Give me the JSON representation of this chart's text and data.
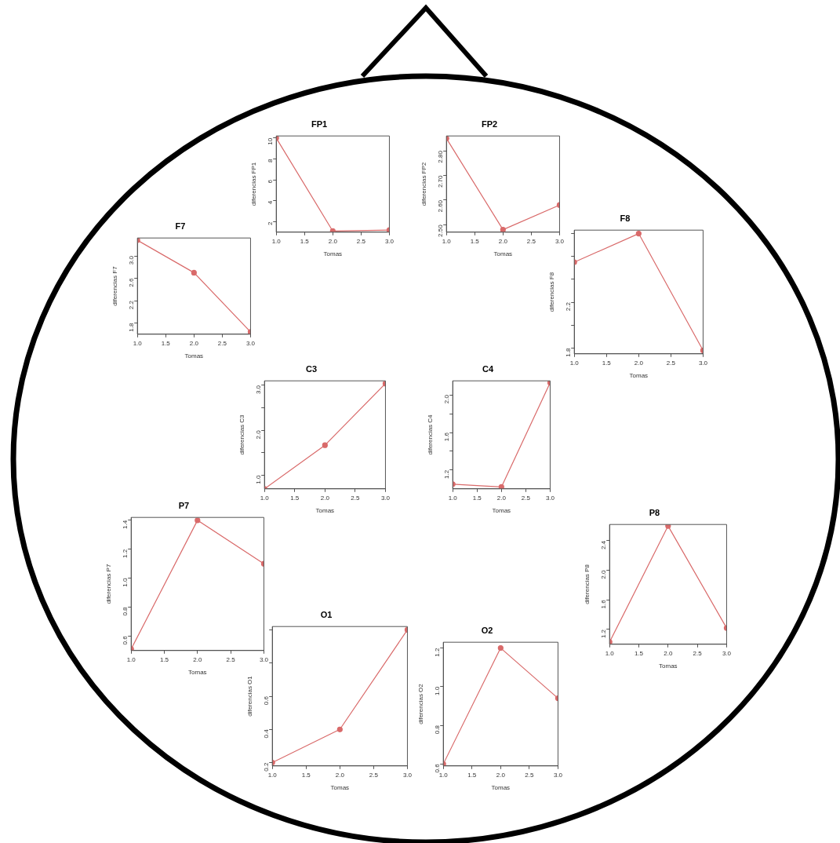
{
  "chart_data": [
    {
      "type": "line",
      "title": "FP1",
      "xlabel": "Tomas",
      "ylabel": "diferencias FP1",
      "x": [
        1,
        2,
        3
      ],
      "values": [
        10,
        1.1,
        1.2
      ],
      "color": "#d96a6a",
      "marker": "circle",
      "xlim": [
        1,
        3
      ],
      "xticks": [
        {
          "value": 1,
          "label": "1.0"
        },
        {
          "value": 1.5,
          "label": "1.5"
        },
        {
          "value": 2,
          "label": "2.0"
        },
        {
          "value": 2.5,
          "label": "2.5"
        },
        {
          "value": 3,
          "label": "3.0"
        }
      ],
      "ylim": [
        1,
        10.2
      ],
      "yticks": [
        2,
        4,
        6,
        8,
        10
      ]
    },
    {
      "type": "line",
      "title": "FP2",
      "xlabel": "Tomas",
      "ylabel": "diferencias FP2",
      "x": [
        1,
        2,
        3
      ],
      "values": [
        2.85,
        2.48,
        2.58
      ],
      "color": "#d96a6a",
      "marker": "circle",
      "xlim": [
        1,
        3
      ],
      "xticks": [
        {
          "value": 1,
          "label": "1.0"
        },
        {
          "value": 1.5,
          "label": "1.5"
        },
        {
          "value": 2,
          "label": "2.0"
        },
        {
          "value": 2.5,
          "label": "2.5"
        },
        {
          "value": 3,
          "label": "3.0"
        }
      ],
      "ylim": [
        2.47,
        2.86
      ],
      "yticks": [
        {
          "value": 2.5,
          "label": "2.50"
        },
        {
          "value": 2.6,
          "label": "2.60"
        },
        {
          "value": 2.7,
          "label": "2.70"
        },
        {
          "value": 2.8,
          "label": "2.80"
        }
      ]
    },
    {
      "type": "line",
      "title": "F7",
      "xlabel": "Tomas",
      "ylabel": "diferencias F7",
      "x": [
        1,
        2,
        3
      ],
      "values": [
        3.28,
        2.7,
        1.64
      ],
      "color": "#d96a6a",
      "marker": "circle",
      "xlim": [
        1,
        3
      ],
      "xticks": [
        {
          "value": 1,
          "label": "1.0"
        },
        {
          "value": 1.5,
          "label": "1.5"
        },
        {
          "value": 2,
          "label": "2.0"
        },
        {
          "value": 2.5,
          "label": "2.5"
        },
        {
          "value": 3,
          "label": "3.0"
        }
      ],
      "ylim": [
        1.6,
        3.32
      ],
      "yticks": [
        1.8,
        2.2,
        2.6,
        {
          "value": 3,
          "label": "3.0"
        }
      ]
    },
    {
      "type": "line",
      "title": "F8",
      "xlabel": "Tomas",
      "ylabel": "diferencias F8",
      "x": [
        1,
        2,
        3
      ],
      "values": [
        2.55,
        2.8,
        1.78
      ],
      "color": "#d96a6a",
      "marker": "circle",
      "xlim": [
        1,
        3
      ],
      "xticks": [
        {
          "value": 1,
          "label": "1.0"
        },
        {
          "value": 1.5,
          "label": "1.5"
        },
        {
          "value": 2,
          "label": "2.0"
        },
        {
          "value": 2.5,
          "label": "2.5"
        },
        {
          "value": 3,
          "label": "3.0"
        }
      ],
      "ylim": [
        1.75,
        2.83
      ],
      "yticks": [
        1.8,
        {
          "value": 2,
          "label": null
        },
        2.2,
        {
          "value": 2.4,
          "label": null
        },
        {
          "value": 2.6,
          "label": null
        },
        {
          "value": 2.8,
          "label": null
        }
      ]
    },
    {
      "type": "line",
      "title": "C3",
      "xlabel": "Tomas",
      "ylabel": "diferencias C3",
      "x": [
        1,
        2,
        3
      ],
      "values": [
        0.7,
        1.67,
        3.04
      ],
      "color": "#d96a6a",
      "marker": "circle",
      "xlim": [
        1,
        3
      ],
      "xticks": [
        {
          "value": 1,
          "label": "1.0"
        },
        {
          "value": 1.5,
          "label": "1.5"
        },
        {
          "value": 2,
          "label": "2.0"
        },
        {
          "value": 2.5,
          "label": "2.5"
        },
        {
          "value": 3,
          "label": "3.0"
        }
      ],
      "ylim": [
        0.7,
        3.1
      ],
      "yticks": [
        {
          "value": 1,
          "label": "1.0"
        },
        {
          "value": 1.5,
          "label": null
        },
        {
          "value": 2,
          "label": "2.0"
        },
        {
          "value": 2.5,
          "label": null
        },
        {
          "value": 3,
          "label": "3.0"
        }
      ]
    },
    {
      "type": "line",
      "title": "C4",
      "xlabel": "Tomas",
      "ylabel": "diferencias C4",
      "x": [
        1,
        2,
        3
      ],
      "values": [
        1.05,
        1.02,
        2.13
      ],
      "color": "#d96a6a",
      "marker": "circle",
      "xlim": [
        1,
        3
      ],
      "xticks": [
        {
          "value": 1,
          "label": "1.0"
        },
        {
          "value": 1.5,
          "label": "1.5"
        },
        {
          "value": 2,
          "label": "2.0"
        },
        {
          "value": 2.5,
          "label": "2.5"
        },
        {
          "value": 3,
          "label": "3.0"
        }
      ],
      "ylim": [
        1,
        2.15
      ],
      "yticks": [
        1.2,
        {
          "value": 1.4,
          "label": null
        },
        1.6,
        {
          "value": 1.8,
          "label": null
        },
        {
          "value": 2,
          "label": "2.0"
        }
      ]
    },
    {
      "type": "line",
      "title": "P7",
      "xlabel": "Tomas",
      "ylabel": "diferencias P7",
      "x": [
        1,
        2,
        3
      ],
      "values": [
        0.51,
        1.4,
        1.1
      ],
      "color": "#d96a6a",
      "marker": "circle",
      "xlim": [
        1,
        3
      ],
      "xticks": [
        {
          "value": 1,
          "label": "1.0"
        },
        {
          "value": 1.5,
          "label": "1.5"
        },
        {
          "value": 2,
          "label": "2.0"
        },
        {
          "value": 2.5,
          "label": "2.5"
        },
        {
          "value": 3,
          "label": "3.0"
        }
      ],
      "ylim": [
        0.5,
        1.42
      ],
      "yticks": [
        0.6,
        0.8,
        {
          "value": 1,
          "label": "1.0"
        },
        1.2,
        1.4
      ]
    },
    {
      "type": "line",
      "title": "P8",
      "xlabel": "Tomas",
      "ylabel": "diferencias P8",
      "x": [
        1,
        2,
        3
      ],
      "values": [
        1.03,
        2.6,
        1.22
      ],
      "color": "#d96a6a",
      "marker": "circle",
      "xlim": [
        1,
        3
      ],
      "xticks": [
        {
          "value": 1,
          "label": "1.0"
        },
        {
          "value": 1.5,
          "label": "1.5"
        },
        {
          "value": 2,
          "label": "2.0"
        },
        {
          "value": 2.5,
          "label": "2.5"
        },
        {
          "value": 3,
          "label": "3.0"
        }
      ],
      "ylim": [
        1,
        2.62
      ],
      "yticks": [
        1.2,
        1.6,
        {
          "value": 2,
          "label": "2.0"
        },
        2.4
      ]
    },
    {
      "type": "line",
      "title": "O1",
      "xlabel": "Tomas",
      "ylabel": "diferencias O1",
      "x": [
        1,
        2,
        3
      ],
      "values": [
        0.2,
        0.4,
        1.0
      ],
      "color": "#d96a6a",
      "marker": "circle",
      "xlim": [
        1,
        3
      ],
      "xticks": [
        {
          "value": 1,
          "label": "1.0"
        },
        {
          "value": 1.5,
          "label": "1.5"
        },
        {
          "value": 2,
          "label": "2.0"
        },
        {
          "value": 2.5,
          "label": "2.5"
        },
        {
          "value": 3,
          "label": "3.0"
        }
      ],
      "ylim": [
        0.18,
        1.02
      ],
      "yticks": [
        0.2,
        0.4,
        0.6,
        {
          "value": 0.8,
          "label": null
        },
        {
          "value": 1,
          "label": null
        }
      ]
    },
    {
      "type": "line",
      "title": "O2",
      "xlabel": "Tomas",
      "ylabel": "diferencias O2",
      "x": [
        1,
        2,
        3
      ],
      "values": [
        0.6,
        1.2,
        0.94
      ],
      "color": "#d96a6a",
      "marker": "circle",
      "xlim": [
        1,
        3
      ],
      "xticks": [
        {
          "value": 1,
          "label": "1.0"
        },
        {
          "value": 1.5,
          "label": "1.5"
        },
        {
          "value": 2,
          "label": "2.0"
        },
        {
          "value": 2.5,
          "label": "2.5"
        },
        {
          "value": 3,
          "label": "3.0"
        }
      ],
      "ylim": [
        0.59,
        1.23
      ],
      "yticks": [
        0.6,
        0.8,
        {
          "value": 1,
          "label": "1.0"
        },
        1.2
      ]
    }
  ]
}
